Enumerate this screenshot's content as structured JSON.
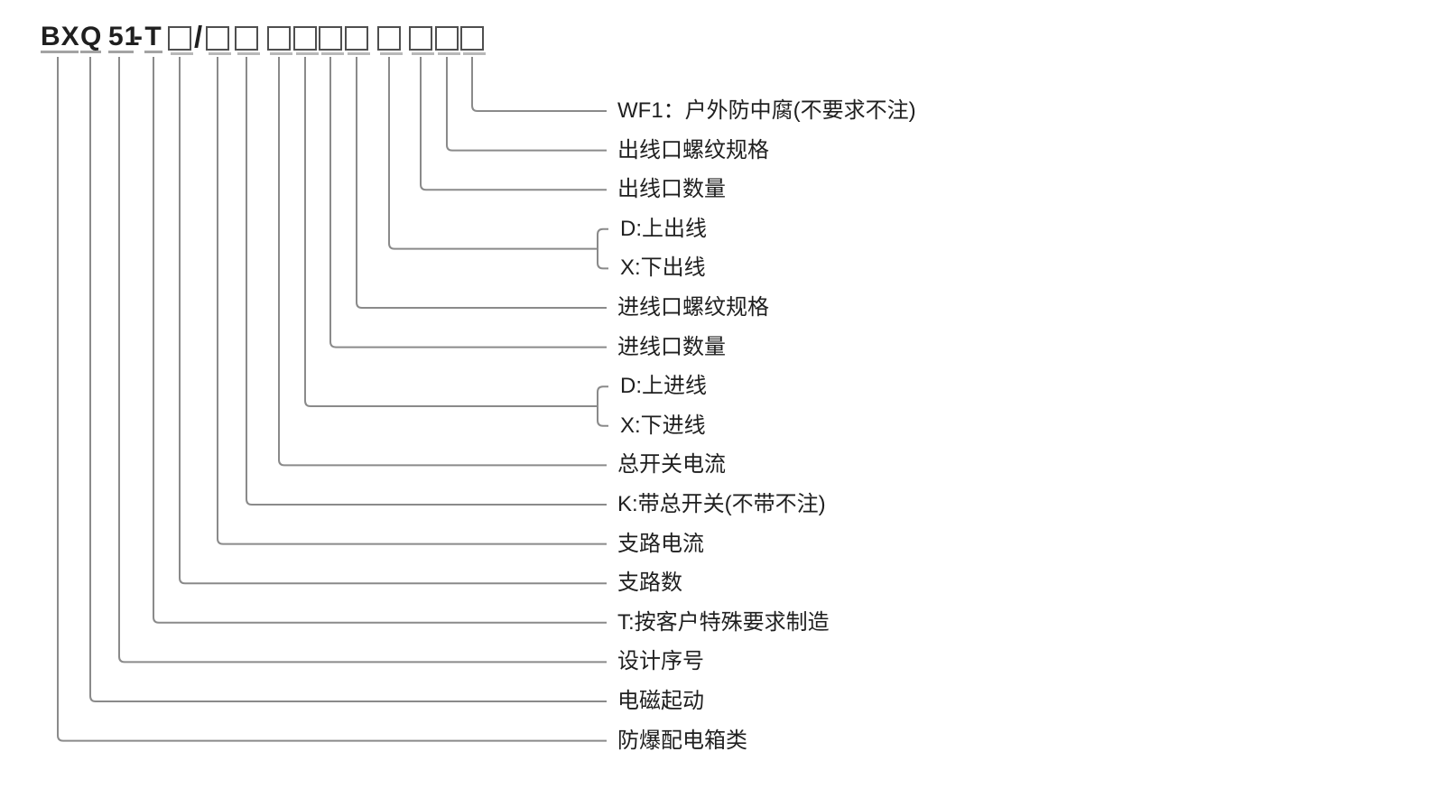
{
  "model_code": {
    "segments": [
      {
        "text": "BX",
        "underlined": true
      },
      {
        "text": "Q",
        "underlined": true
      },
      {
        "text": "51",
        "underlined": true
      },
      {
        "text": "-",
        "underlined": false
      },
      {
        "text": "T",
        "underlined": true
      }
    ],
    "separator": "/",
    "boxes_before_separator": 1,
    "boxes_after_separator": 10
  },
  "branches": [
    {
      "type": "single",
      "label": "WF1：户外防中腐(不要求不注)"
    },
    {
      "type": "single",
      "label": "出线口螺纹规格"
    },
    {
      "type": "single",
      "label": "出线口数量"
    },
    {
      "type": "bracket",
      "labels": [
        "D:上出线",
        "X:下出线"
      ]
    },
    {
      "type": "single",
      "label": "进线口螺纹规格"
    },
    {
      "type": "single",
      "label": "进线口数量"
    },
    {
      "type": "bracket",
      "labels": [
        "D:上进线",
        "X:下进线"
      ]
    },
    {
      "type": "single",
      "label": "总开关电流"
    },
    {
      "type": "single",
      "label": "K:带总开关(不带不注)"
    },
    {
      "type": "single",
      "label": "支路电流"
    },
    {
      "type": "single",
      "label": "支路数"
    },
    {
      "type": "single",
      "label": "T:按客户特殊要求制造"
    },
    {
      "type": "single",
      "label": "设计序号"
    },
    {
      "type": "single",
      "label": "电磁起动"
    },
    {
      "type": "single",
      "label": "防爆配电箱类"
    }
  ],
  "colors": {
    "line": "#8a8a8a",
    "text": "#1f1f1f",
    "underline": "#a3a3a3",
    "box_border": "#4f4f4f",
    "box_shadow": "#b8b8b8",
    "background": "#ffffff"
  }
}
